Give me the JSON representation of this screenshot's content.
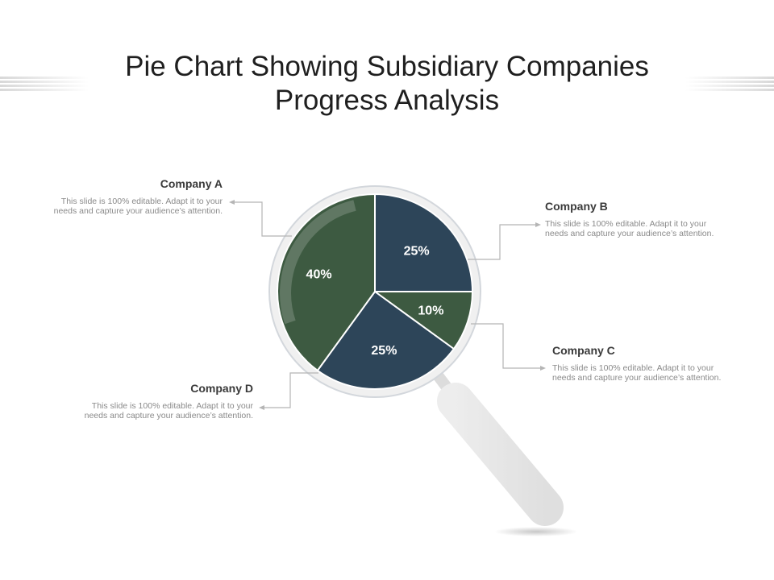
{
  "slide": {
    "title_line1": "Pie Chart Showing Subsidiary Companies",
    "title_line2": "Progress Analysis"
  },
  "colors": {
    "green": "#3d5a41",
    "navy": "#2d4559",
    "lens_ring": "#e9e9e9",
    "handle": "#ebebeb",
    "connector": "#b5b5b5"
  },
  "callouts": [
    {
      "heading": "Company A",
      "body": "This slide is 100% editable. Adapt it to your needs and capture your audience’s attention."
    },
    {
      "heading": "Company B",
      "body": "This slide is 100% editable. Adapt it to your needs and capture your audience’s attention."
    },
    {
      "heading": "Company C",
      "body": "This slide is 100% editable. Adapt it to your needs and capture your audience’s attention."
    },
    {
      "heading": "Company D",
      "body": "This slide is 100% editable. Adapt it to your needs and capture your audience’s attention."
    }
  ],
  "chart_data": {
    "type": "pie",
    "title": "",
    "slices": [
      {
        "label": "Company B",
        "value": 25,
        "display": "25%",
        "color": "#2d4559"
      },
      {
        "label": "Company C",
        "value": 10,
        "display": "10%",
        "color": "#3d5a41"
      },
      {
        "label": "Company D",
        "value": 25,
        "display": "25%",
        "color": "#2d4559"
      },
      {
        "label": "Company A",
        "value": 40,
        "display": "40%",
        "color": "#3d5a41"
      }
    ],
    "start_angle": "12 o'clock",
    "direction": "clockwise",
    "legend": "none"
  }
}
